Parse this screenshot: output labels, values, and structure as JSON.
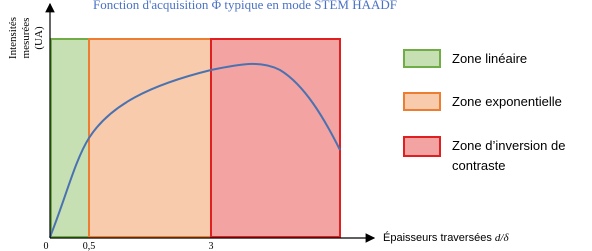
{
  "title": "Fonction d'acquisition Φ typique en mode STEM HAADF",
  "y_axis_label": [
    "Intensités",
    "mesurées",
    "(UA)"
  ],
  "x_axis_label": {
    "text": "Épaisseurs traversées ",
    "symbol": "d/δ"
  },
  "x_tick_labels": [
    "0",
    "0,5",
    "3"
  ],
  "legend": [
    {
      "label": [
        "Zone linéaire"
      ]
    },
    {
      "label": [
        "Zone exponentielle"
      ]
    },
    {
      "label": [
        " Zone d’inversion de",
        "contraste"
      ]
    }
  ]
}
